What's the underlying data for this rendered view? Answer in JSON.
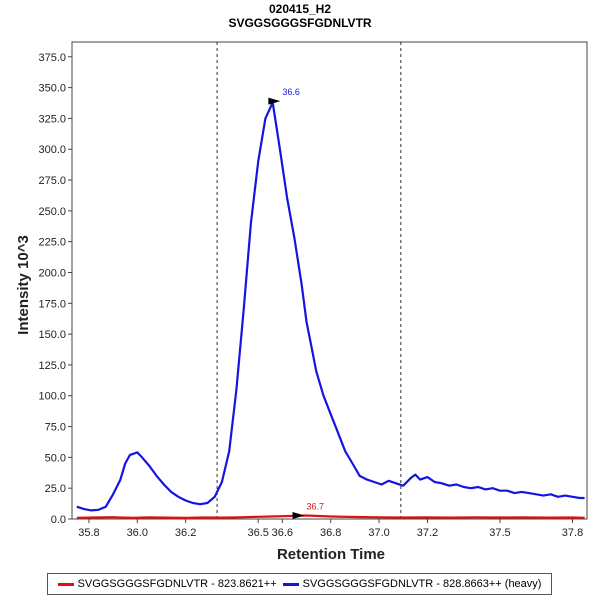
{
  "chart_data": {
    "type": "line",
    "title": "020415_H2",
    "subtitle": "SVGGSGGGSFGDNLVTR",
    "xlabel": "Retention Time",
    "ylabel": "Intensity 10^3",
    "xlim": [
      35.73,
      37.86
    ],
    "ylim": [
      0,
      387
    ],
    "x_ticks": [
      35.8,
      36.0,
      36.2,
      36.5,
      36.6,
      36.8,
      37.0,
      37.2,
      37.5,
      37.8
    ],
    "x_tick_labels": [
      "35.8",
      "36.0",
      "36.2",
      "36.5",
      "36.6",
      "36.8",
      "37.0",
      "37.2",
      "37.5",
      "37.8"
    ],
    "y_ticks": [
      0,
      25,
      50,
      75,
      100,
      125,
      150,
      175,
      200,
      225,
      250,
      275,
      300,
      325,
      350,
      375
    ],
    "y_tick_labels": [
      "0.0",
      "25.0",
      "50.0",
      "75.0",
      "100.0",
      "125.0",
      "150.0",
      "175.0",
      "200.0",
      "225.0",
      "250.0",
      "275.0",
      "300.0",
      "325.0",
      "350.0",
      "375.0"
    ],
    "integration_bounds": [
      36.33,
      37.09
    ],
    "series": [
      {
        "name": "SVGGSGGGSFGDNLVTR - 823.8621++",
        "color": "#e01010",
        "x": [
          35.75,
          35.82,
          35.9,
          35.98,
          36.05,
          36.12,
          36.2,
          36.28,
          36.35,
          36.42,
          36.5,
          36.55,
          36.6,
          36.65,
          36.7,
          36.75,
          36.8,
          36.9,
          37.0,
          37.1,
          37.2,
          37.3,
          37.4,
          37.5,
          37.6,
          37.7,
          37.8,
          37.85
        ],
        "values": [
          1.0,
          1.2,
          1.5,
          1.0,
          1.3,
          1.1,
          0.9,
          1.2,
          1.1,
          1.4,
          1.8,
          2.0,
          2.3,
          2.5,
          2.8,
          2.4,
          2.0,
          1.6,
          1.4,
          1.2,
          1.3,
          1.1,
          1.4,
          1.2,
          1.3,
          1.1,
          1.2,
          1.0
        ]
      },
      {
        "name": "SVGGSGGGSFGDNLVTR - 828.8663++ (heavy)",
        "color": "#1515e0",
        "x": [
          35.75,
          35.78,
          35.81,
          35.84,
          35.87,
          35.9,
          35.93,
          35.95,
          35.97,
          36.0,
          36.02,
          36.05,
          36.08,
          36.11,
          36.14,
          36.17,
          36.2,
          36.23,
          36.26,
          36.29,
          36.32,
          36.35,
          36.38,
          36.41,
          36.44,
          36.47,
          36.5,
          36.53,
          36.56,
          36.59,
          36.62,
          36.65,
          36.68,
          36.7,
          36.72,
          36.74,
          36.77,
          36.8,
          36.83,
          36.86,
          36.89,
          36.92,
          36.95,
          36.98,
          37.01,
          37.04,
          37.07,
          37.1,
          37.13,
          37.15,
          37.17,
          37.2,
          37.23,
          37.26,
          37.29,
          37.32,
          37.35,
          37.38,
          37.41,
          37.44,
          37.47,
          37.5,
          37.53,
          37.56,
          37.59,
          37.62,
          37.65,
          37.68,
          37.71,
          37.74,
          37.77,
          37.8,
          37.83,
          37.85
        ],
        "values": [
          10,
          8,
          7,
          7.5,
          10,
          20,
          32,
          45,
          52,
          54,
          50,
          43,
          35,
          28,
          22,
          18,
          15,
          13,
          12,
          13,
          18,
          30,
          55,
          105,
          170,
          240,
          290,
          325,
          338,
          300,
          260,
          228,
          190,
          160,
          140,
          120,
          100,
          85,
          70,
          55,
          45,
          35,
          32,
          30,
          28,
          31,
          29,
          27,
          33,
          36,
          32,
          34,
          30,
          29,
          27,
          28,
          26,
          25,
          26,
          24,
          25,
          23,
          23,
          21,
          22,
          21,
          20,
          19,
          20,
          18,
          19,
          18,
          17,
          17
        ]
      }
    ],
    "annotations": [
      {
        "label": "36.6",
        "x": 36.6,
        "y": 339,
        "color": "#1515e0"
      },
      {
        "label": "36.7",
        "x": 36.7,
        "y": 2.8,
        "color": "#e01010"
      }
    ]
  }
}
